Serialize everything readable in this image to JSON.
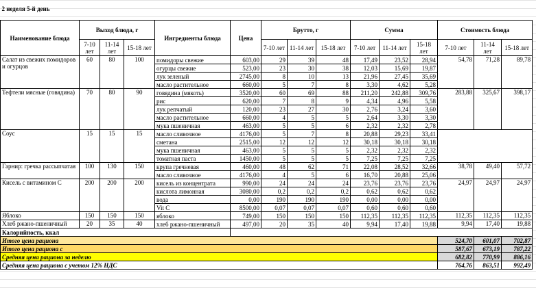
{
  "title": "2 неделя 5-й день",
  "header": {
    "name": "Наименование блюда",
    "yield": "Выход блюда, г",
    "ingredients": "Ингредиенты блюда",
    "price": "Цена",
    "brutto": "Брутто, г",
    "sum": "Сумма",
    "cost": "Стоимость блюда",
    "yield_ages": [
      "7-10 лет",
      "11-14 лет",
      "15-18 лет"
    ],
    "brutto_ages": [
      "7-10 лет",
      "11-14 лет",
      "15-18 лет"
    ],
    "sum_ages": [
      "7-10 лет",
      "11-14 лет",
      "15-18 лет"
    ],
    "cost_ages": [
      "7-10 лет",
      "11-14 лет",
      "15-18 лет"
    ]
  },
  "dishes": [
    {
      "name": "Салат из свежих помидоров и огурцов",
      "yield": [
        "60",
        "80",
        "100"
      ],
      "cost": [
        "54,78",
        "71,28",
        "89,78"
      ],
      "ingredients": [
        {
          "name": "помидоры свежие",
          "price": "603,00",
          "brutto": [
            "29",
            "39",
            "48"
          ],
          "sum": [
            "17,49",
            "23,52",
            "28,94"
          ]
        },
        {
          "name": "огурцы свежие",
          "price": "523,00",
          "brutto": [
            "23",
            "30",
            "38"
          ],
          "sum": [
            "12,03",
            "15,69",
            "19,87"
          ]
        },
        {
          "name": "лук зеленый",
          "price": "2745,00",
          "brutto": [
            "8",
            "10",
            "13"
          ],
          "sum": [
            "21,96",
            "27,45",
            "35,69"
          ]
        },
        {
          "name": "масло растительное",
          "price": "660,00",
          "brutto": [
            "5",
            "7",
            "8"
          ],
          "sum": [
            "3,30",
            "4,62",
            "5,28"
          ]
        }
      ]
    },
    {
      "name": "Тефтели мясные (говядина)",
      "yield": [
        "70",
        "80",
        "90"
      ],
      "cost": [
        "283,88",
        "325,67",
        "398,17"
      ],
      "ingredients": [
        {
          "name": "говядина (мякоть)",
          "price": "3520,00",
          "brutto": [
            "60",
            "69",
            "88"
          ],
          "sum": [
            "211,20",
            "242,88",
            "309,76"
          ]
        },
        {
          "name": "рис",
          "price": "620,00",
          "brutto": [
            "7",
            "8",
            "9"
          ],
          "sum": [
            "4,34",
            "4,96",
            "5,58"
          ]
        },
        {
          "name": "лук репчатый",
          "price": "120,00",
          "brutto": [
            "23",
            "27",
            "30"
          ],
          "sum": [
            "2,76",
            "3,24",
            "3,60"
          ]
        },
        {
          "name": "масло растительное",
          "price": "660,00",
          "brutto": [
            "4",
            "5",
            "5"
          ],
          "sum": [
            "2,64",
            "3,30",
            "3,30"
          ]
        },
        {
          "name": "мука пшеничная",
          "price": "463,00",
          "brutto": [
            "5",
            "5",
            "6"
          ],
          "sum": [
            "2,32",
            "2,32",
            "2,78"
          ]
        }
      ]
    },
    {
      "name": "Соус",
      "yield": [
        "15",
        "15",
        "15"
      ],
      "cost": [],
      "ingredients": [
        {
          "name": "масло сливочное",
          "price": "4176,00",
          "brutto": [
            "5",
            "7",
            "8"
          ],
          "sum": [
            "20,88",
            "29,23",
            "33,41"
          ]
        },
        {
          "name": "сметана",
          "price": "2515,00",
          "brutto": [
            "12",
            "12",
            "12"
          ],
          "sum": [
            "30,18",
            "30,18",
            "30,18"
          ]
        },
        {
          "name": "мука пшеничная",
          "price": "463,00",
          "brutto": [
            "5",
            "5",
            "5"
          ],
          "sum": [
            "2,32",
            "2,32",
            "2,32"
          ]
        },
        {
          "name": "томатная паста",
          "price": "1450,00",
          "brutto": [
            "5",
            "5",
            "5"
          ],
          "sum": [
            "7,25",
            "7,25",
            "7,25"
          ]
        }
      ]
    },
    {
      "name": "Гарнир: гречка рассыпчатая",
      "yield": [
        "100",
        "130",
        "150"
      ],
      "cost": [
        "38,78",
        "49,40",
        "57,72"
      ],
      "ingredients": [
        {
          "name": "крупа гречневая",
          "price": "460,00",
          "brutto": [
            "48",
            "62",
            "71"
          ],
          "sum": [
            "22,08",
            "28,52",
            "32,66"
          ]
        },
        {
          "name": "масло сливочное",
          "price": "4176,00",
          "brutto": [
            "4",
            "5",
            "6"
          ],
          "sum": [
            "16,70",
            "20,88",
            "25,06"
          ]
        }
      ]
    },
    {
      "name": "Кисель с витамином С",
      "yield": [
        "200",
        "200",
        "200"
      ],
      "cost": [
        "24,97",
        "24,97",
        "24,97"
      ],
      "ingredients": [
        {
          "name": "кисель из концентрата",
          "price": "990,00",
          "brutto": [
            "24",
            "24",
            "24"
          ],
          "sum": [
            "23,76",
            "23,76",
            "23,76"
          ]
        },
        {
          "name": "кислота лимонная",
          "price": "3080,00",
          "brutto": [
            "0,2",
            "0,2",
            "0,2"
          ],
          "sum": [
            "0,62",
            "0,62",
            "0,62"
          ]
        },
        {
          "name": "вода",
          "price": "0,00",
          "brutto": [
            "190",
            "190",
            "190"
          ],
          "sum": [
            "0,00",
            "0,00",
            "0,00"
          ]
        },
        {
          "name": "Vit C",
          "price": "8500,00",
          "brutto": [
            "0,07",
            "0,07",
            "0,07"
          ],
          "sum": [
            "0,60",
            "0,60",
            "0,60"
          ]
        }
      ]
    },
    {
      "name": "Яблоко",
      "yield": [
        "150",
        "150",
        "150"
      ],
      "cost": [
        "112,35",
        "112,35",
        "112,35"
      ],
      "ingredients": [
        {
          "name": "яблоко",
          "price": "749,00",
          "brutto": [
            "150",
            "150",
            "150"
          ],
          "sum": [
            "112,35",
            "112,35",
            "112,35"
          ]
        }
      ]
    },
    {
      "name": "Хлеб ржано-пшеничный",
      "yield": [
        "20",
        "35",
        "40"
      ],
      "cost": [
        "9,94",
        "17,40",
        "19,88"
      ],
      "ingredients": [
        {
          "name": "хлеб ржано-пшеничный",
          "price": "497,00",
          "brutto": [
            "20",
            "35",
            "40"
          ],
          "sum": [
            "9,94",
            "17,40",
            "19,88"
          ]
        }
      ]
    }
  ],
  "calories": "Калорийность, ккал",
  "totals": [
    {
      "label": "Итого цена рациона",
      "values": [
        "524,70",
        "601,07",
        "702,87"
      ]
    },
    {
      "label": "Итого цена рациона с",
      "values": [
        "587,67",
        "673,19",
        "787,22"
      ]
    },
    {
      "label": "Средняя цена рациона за неделю",
      "values": [
        "682,82",
        "770,99",
        "886,16"
      ]
    },
    {
      "label": "Средняя цена рациона с учетом 12% НДС",
      "values": [
        "764,76",
        "863,51",
        "992,49"
      ]
    }
  ]
}
